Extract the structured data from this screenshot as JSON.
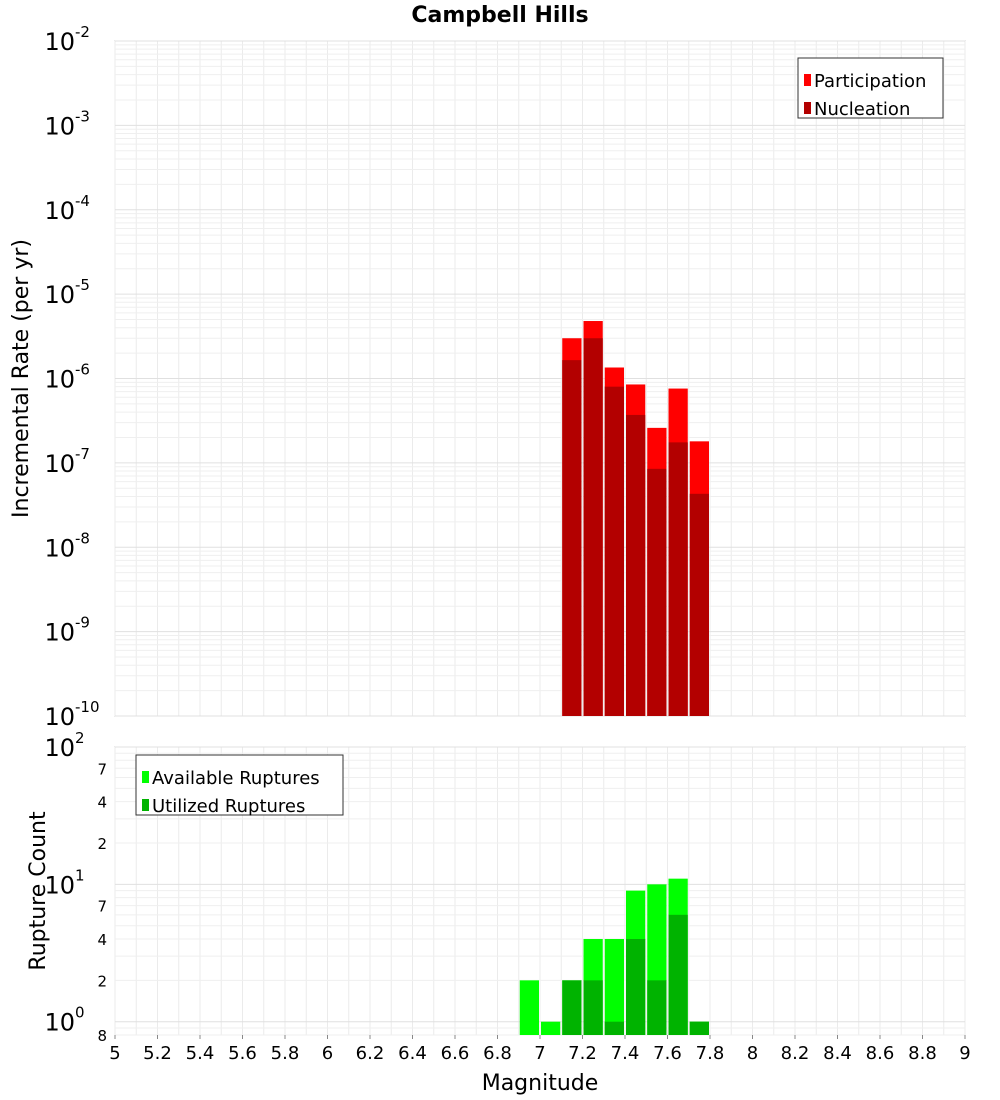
{
  "chart_data": [
    {
      "type": "bar",
      "title": "Campbell Hills",
      "xlabel": "",
      "ylabel": "Incremental Rate (per yr)",
      "xlim": [
        5,
        9
      ],
      "ylim": [
        1e-10,
        0.01
      ],
      "yscale": "log",
      "grid": true,
      "legend_position": "top-right",
      "bin_width": 0.1,
      "x": [
        7.15,
        7.25,
        7.35,
        7.45,
        7.55,
        7.65,
        7.75
      ],
      "series": [
        {
          "name": "Participation",
          "color": "#ff0000",
          "values": [
            3e-06,
            4.8e-06,
            1.35e-06,
            8.5e-07,
            2.6e-07,
            7.6e-07,
            1.8e-07
          ]
        },
        {
          "name": "Nucleation",
          "color": "#b30000",
          "values": [
            1.65e-06,
            3e-06,
            8e-07,
            3.7e-07,
            8.5e-08,
            1.75e-07,
            4.3e-08
          ]
        }
      ],
      "y_ticks": [
        {
          "base": "10",
          "exp": "-2",
          "value": 0.01
        },
        {
          "base": "10",
          "exp": "-3",
          "value": 0.001
        },
        {
          "base": "10",
          "exp": "-4",
          "value": 0.0001
        },
        {
          "base": "10",
          "exp": "-5",
          "value": 1e-05
        },
        {
          "base": "10",
          "exp": "-6",
          "value": 1e-06
        },
        {
          "base": "10",
          "exp": "-7",
          "value": 1e-07
        },
        {
          "base": "10",
          "exp": "-8",
          "value": 1e-08
        },
        {
          "base": "10",
          "exp": "-9",
          "value": 1e-09
        },
        {
          "base": "10",
          "exp": "-10",
          "value": 1e-10
        }
      ]
    },
    {
      "type": "bar",
      "xlabel": "Magnitude",
      "ylabel": "Rupture Count",
      "xlim": [
        5,
        9
      ],
      "ylim": [
        0.8,
        100
      ],
      "yscale": "log",
      "grid": true,
      "legend_position": "top-left",
      "bin_width": 0.1,
      "x": [
        6.95,
        7.05,
        7.15,
        7.25,
        7.35,
        7.45,
        7.55,
        7.65,
        7.75
      ],
      "series": [
        {
          "name": "Available Ruptures",
          "color": "#00ff00",
          "values": [
            2,
            1,
            2,
            4,
            4,
            9,
            10,
            11,
            1
          ]
        },
        {
          "name": "Utilized Ruptures",
          "color": "#00b300",
          "values": [
            0,
            0,
            2,
            2,
            1,
            4,
            2,
            6,
            1
          ]
        }
      ],
      "y_ticks": [
        {
          "base": "10",
          "exp": "2",
          "value": 100
        },
        {
          "base": "10",
          "exp": "1",
          "value": 10
        },
        {
          "base": "10",
          "exp": "0",
          "value": 1
        }
      ],
      "y_minor_ticks": [
        {
          "label": "7",
          "value": 70
        },
        {
          "label": "4",
          "value": 40
        },
        {
          "label": "2",
          "value": 20
        },
        {
          "label": "7",
          "value": 7
        },
        {
          "label": "4",
          "value": 4
        },
        {
          "label": "2",
          "value": 2
        },
        {
          "label": "8",
          "value": 0.8
        }
      ],
      "x_ticks": [
        "5",
        "5.2",
        "5.4",
        "5.6",
        "5.8",
        "6",
        "6.2",
        "6.4",
        "6.6",
        "6.8",
        "7",
        "7.2",
        "7.4",
        "7.6",
        "7.8",
        "8",
        "8.2",
        "8.4",
        "8.6",
        "8.8",
        "9"
      ]
    }
  ]
}
